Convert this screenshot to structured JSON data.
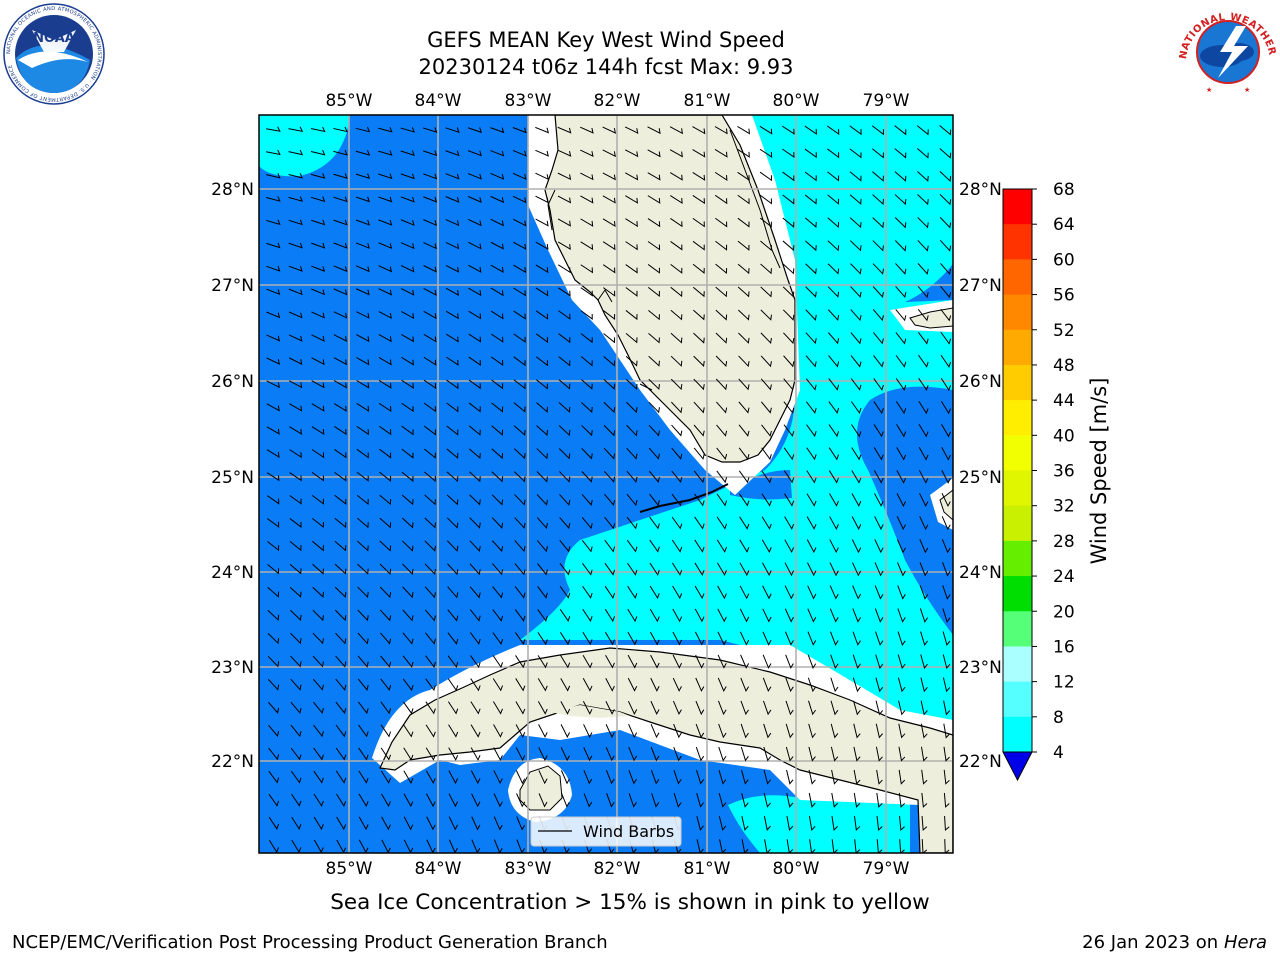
{
  "title_line1": "GEFS MEAN Key West Wind Speed",
  "title_line2": "20230124 t06z 144h fcst   Max: 9.93",
  "note": "Sea Ice Concentration > 15% is shown in pink to yellow",
  "footer_left": "NCEP/EMC/Verification Post Processing Product Generation Branch",
  "footer_date": "26 Jan 2023 on",
  "footer_host": "Hera",
  "legend_label": "Wind Barbs",
  "logos": {
    "noaa_text": "NOAA",
    "noaa_ring_text": "NATIONAL OCEANIC AND ATMOSPHERIC ADMINISTRATION · U.S. DEPARTMENT OF COMMERCE",
    "nws_ring_text": "NATIONAL WEATHER SERVICE"
  },
  "map": {
    "lon_labels": [
      "85°W",
      "84°W",
      "83°W",
      "82°W",
      "81°W",
      "80°W",
      "79°W"
    ],
    "lat_labels": [
      "28°N",
      "27°N",
      "26°N",
      "25°N",
      "24°N",
      "23°N",
      "22°N"
    ],
    "colors": {
      "ocean_blue": "#0a7cf6",
      "cyan": "#00ffff",
      "land": "#eeeedd",
      "gridline": "#b0b0b0",
      "dark_blue": "#0000e8"
    }
  },
  "colorbar": {
    "label": "Wind Speed [m/s]",
    "ticks": [
      "68",
      "64",
      "60",
      "56",
      "52",
      "48",
      "44",
      "40",
      "36",
      "32",
      "28",
      "24",
      "20",
      "16",
      "12",
      "8",
      "4"
    ],
    "colors": [
      "#ff0000",
      "#ff3300",
      "#ff6600",
      "#ff8800",
      "#ffaa00",
      "#ffcc00",
      "#ffee00",
      "#f2ff00",
      "#e0f500",
      "#c8f000",
      "#66ee00",
      "#00dd00",
      "#55ff77",
      "#aaffff",
      "#55ffff",
      "#00ffff",
      "#0a7cf6"
    ],
    "under_color": "#0000e8"
  }
}
